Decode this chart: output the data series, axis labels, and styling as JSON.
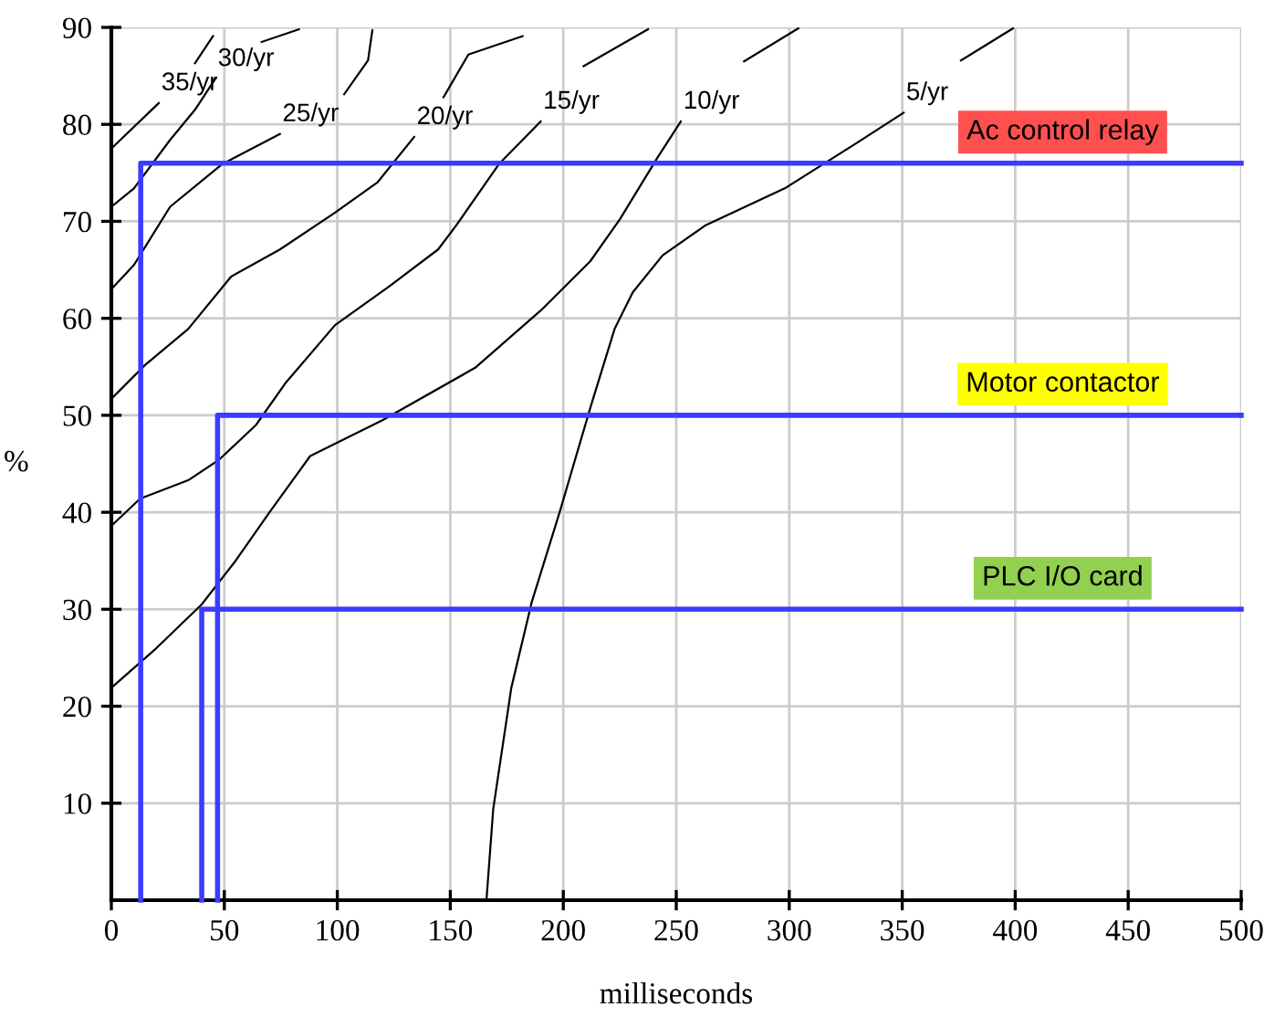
{
  "chart_data": {
    "type": "line",
    "xlabel": "milliseconds",
    "ylabel": "%",
    "xlim": [
      0,
      500
    ],
    "ylim": [
      0,
      90
    ],
    "xticks": [
      0,
      50,
      100,
      150,
      200,
      250,
      300,
      350,
      400,
      450,
      500
    ],
    "yticks": [
      10,
      20,
      30,
      40,
      50,
      60,
      70,
      80,
      90
    ],
    "grid": true,
    "series": [
      {
        "name": "35/yr",
        "color": "#000000",
        "x": [
          0,
          21
        ],
        "values": [
          77.5,
          82.2
        ]
      },
      {
        "color": "#000000",
        "x": [
          37,
          45
        ],
        "values": [
          86.3,
          89.1
        ]
      },
      {
        "name": "30/yr",
        "color": "#000000",
        "x": [
          0,
          10,
          26,
          37,
          46
        ],
        "values": [
          71.5,
          73.4,
          78.4,
          81.5,
          84.7
        ]
      },
      {
        "color": "#000000",
        "x": [
          66.5,
          83
        ],
        "values": [
          88.5,
          89.8
        ]
      },
      {
        "name": "25/yr",
        "color": "#000000",
        "x": [
          0,
          10,
          26,
          49,
          74.6
        ],
        "values": [
          63,
          65.5,
          71.5,
          75.9,
          79
        ]
      },
      {
        "color": "#000000",
        "x": [
          103,
          113.6,
          115.5
        ],
        "values": [
          83.1,
          86.6,
          89.7
        ]
      },
      {
        "name": "20/yr",
        "color": "#000000",
        "x": [
          0,
          15,
          34,
          53,
          74.6,
          99,
          117.7,
          134
        ],
        "values": [
          51.7,
          55.2,
          58.9,
          64.3,
          67.1,
          70.9,
          74,
          78.7
        ]
      },
      {
        "color": "#000000",
        "x": [
          147,
          158,
          182
        ],
        "values": [
          82.8,
          87.2,
          89.1
        ]
      },
      {
        "name": "15/yr",
        "color": "#000000",
        "x": [
          0,
          12.7,
          34,
          47.6,
          64,
          77,
          99,
          123,
          144.6,
          152.7,
          171.5,
          190
        ],
        "values": [
          38.6,
          41.4,
          43.3,
          45.4,
          49,
          53.3,
          59.3,
          63.3,
          67.1,
          69.6,
          75.9,
          80.3
        ]
      },
      {
        "color": "#000000",
        "x": [
          209,
          237.5
        ],
        "values": [
          86,
          89.8
        ]
      },
      {
        "name": "10/yr",
        "color": "#000000",
        "x": [
          0,
          20,
          40,
          55,
          70,
          88,
          120,
          161,
          190,
          212,
          225,
          241.5,
          252
        ],
        "values": [
          21.9,
          26,
          30.5,
          35,
          40,
          45.8,
          49.5,
          54.9,
          60.8,
          65.9,
          70.2,
          76.5,
          80.3
        ]
      },
      {
        "color": "#000000",
        "x": [
          280,
          304
        ],
        "values": [
          86.5,
          89.9
        ]
      },
      {
        "name": "5/yr",
        "color": "#000000",
        "x": [
          166,
          169,
          177,
          186,
          198.5,
          212,
          222.7,
          230.8,
          244,
          263,
          298,
          330,
          350.6
        ],
        "values": [
          0,
          9.4,
          21.9,
          30.7,
          40.1,
          50.8,
          58.9,
          62.7,
          66.5,
          69.6,
          73.4,
          78.1,
          81.2
        ]
      },
      {
        "color": "#000000",
        "x": [
          376,
          399
        ],
        "values": [
          86.6,
          89.9
        ]
      },
      {
        "name": "Ac control relay",
        "color": "#3c3cff",
        "x": [
          13,
          13,
          500
        ],
        "values": [
          0,
          76,
          76
        ]
      },
      {
        "name": "Motor contactor",
        "color": "#3c3cff",
        "x": [
          47,
          47,
          500
        ],
        "values": [
          0,
          50,
          50
        ]
      },
      {
        "name": "PLC I/O card",
        "color": "#3c3cff",
        "x": [
          40,
          40,
          500
        ],
        "values": [
          0,
          30,
          30
        ]
      }
    ]
  }
}
